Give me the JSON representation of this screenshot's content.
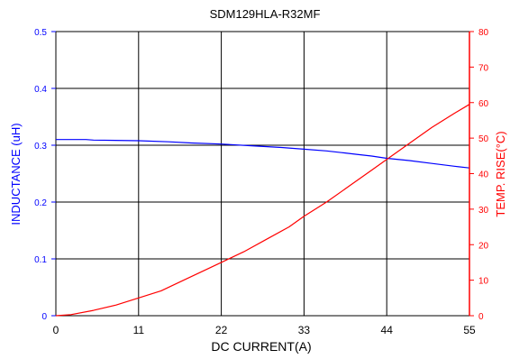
{
  "chart_data": {
    "type": "line",
    "title": "SDM129HLA-R32MF",
    "xlabel": "DC CURRENT(A)",
    "ylabel_left": "INDUCTANCE (uH)",
    "ylabel_right": "TEMP. RISE(°C)",
    "xlim": [
      0,
      55
    ],
    "ylim_left": [
      0,
      0.5
    ],
    "ylim_right": [
      0,
      80
    ],
    "x_ticks": [
      "0",
      "11",
      "22",
      "33",
      "44",
      "55"
    ],
    "y_ticks_left": [
      "0",
      "0.1",
      "0.2",
      "0.3",
      "0.4",
      "0.5"
    ],
    "y_ticks_right": [
      "0",
      "10",
      "20",
      "30",
      "40",
      "50",
      "60",
      "70",
      "80"
    ],
    "grid": true,
    "colors": {
      "left_axis": "#0000ff",
      "right_axis": "#ff0000",
      "grid": "#000000"
    },
    "series": [
      {
        "axis": "left",
        "color": "#0000ff",
        "x": [
          0,
          4,
          5,
          11,
          15,
          18,
          22,
          26,
          30,
          33,
          36,
          38,
          40,
          42,
          44,
          47,
          50,
          53,
          55
        ],
        "y": [
          0.31,
          0.31,
          0.309,
          0.308,
          0.306,
          0.304,
          0.302,
          0.299,
          0.296,
          0.293,
          0.29,
          0.287,
          0.284,
          0.281,
          0.277,
          0.273,
          0.268,
          0.263,
          0.26
        ]
      },
      {
        "axis": "right",
        "color": "#ff0000",
        "x": [
          0,
          2,
          5,
          8,
          11,
          14,
          17,
          20,
          22,
          25,
          28,
          31,
          33,
          36,
          39,
          42,
          44,
          47,
          50,
          53,
          55
        ],
        "y": [
          0,
          0.3,
          1.5,
          3,
          5,
          7,
          10,
          13,
          15,
          18,
          21.5,
          25,
          28,
          32,
          36.5,
          41,
          44,
          48.5,
          53,
          57,
          59.5
        ]
      }
    ]
  }
}
